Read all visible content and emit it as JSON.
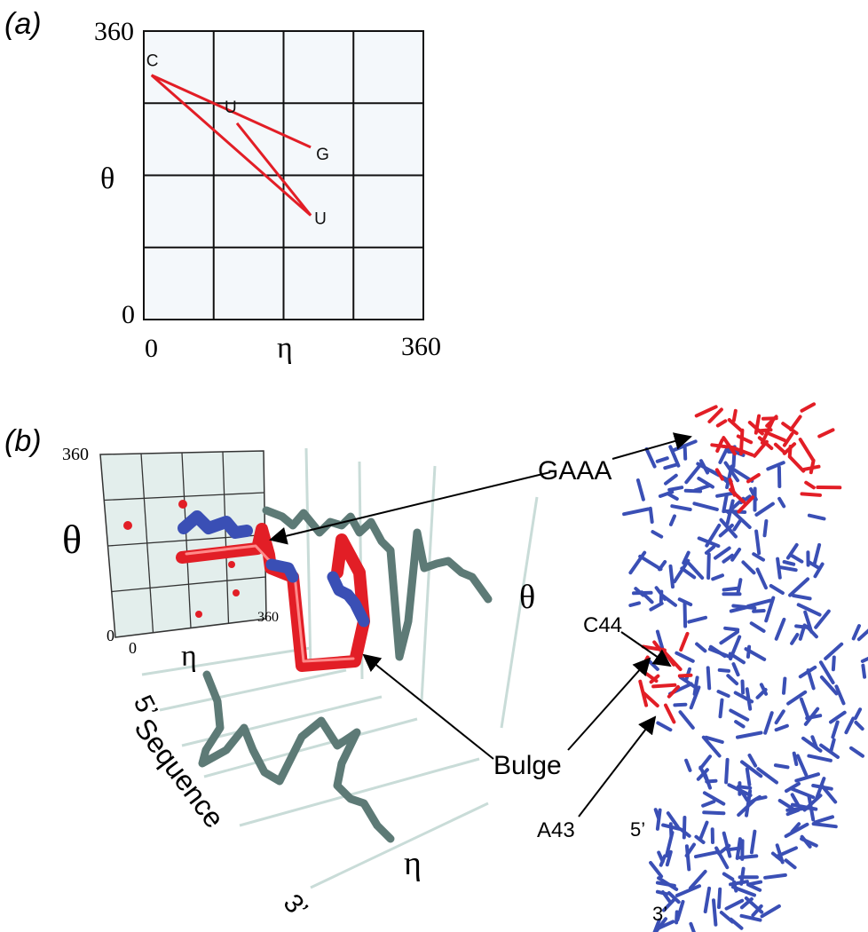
{
  "panel_a": {
    "label": "(a)",
    "y_label": "θ",
    "x_label": "η",
    "y_top_tick": "360",
    "y_bottom_tick": "0",
    "x_left_tick": "0",
    "x_right_tick": "360",
    "line_color": "#e21e26"
  },
  "chart_data": {
    "type": "line",
    "xlabel": "η",
    "ylabel": "θ",
    "xlim": [
      0,
      360
    ],
    "ylim": [
      0,
      360
    ],
    "grid": true,
    "series": [
      {
        "points": [
          {
            "label": "G",
            "x": 215,
            "y": 215
          },
          {
            "label": "C",
            "x": 10,
            "y": 305
          },
          {
            "label": "U",
            "x": 215,
            "y": 130
          },
          {
            "label": "U",
            "x": 120,
            "y": 245
          }
        ]
      }
    ]
  },
  "panel_b": {
    "label": "(b)",
    "inset_y_label": "θ",
    "inset_x_label": "η",
    "inset_top_tick": "360",
    "inset_origin_y": "0",
    "inset_origin_x": "0",
    "inset_right_tick": "360",
    "theta_label": "θ",
    "eta_label": "η",
    "five_prime": "5’",
    "three_prime": "3’",
    "sequence_label": "Sequence",
    "callout_gaaa": "GAAA",
    "callout_bulge": "Bulge",
    "callout_c44": "C44",
    "callout_a43": "A43",
    "struct_five_prime": "5’",
    "struct_three_prime": "3’",
    "colors": {
      "highlight": "#e21e26",
      "backbone": "#3a4fb5",
      "trace": "#5d7a76"
    }
  }
}
